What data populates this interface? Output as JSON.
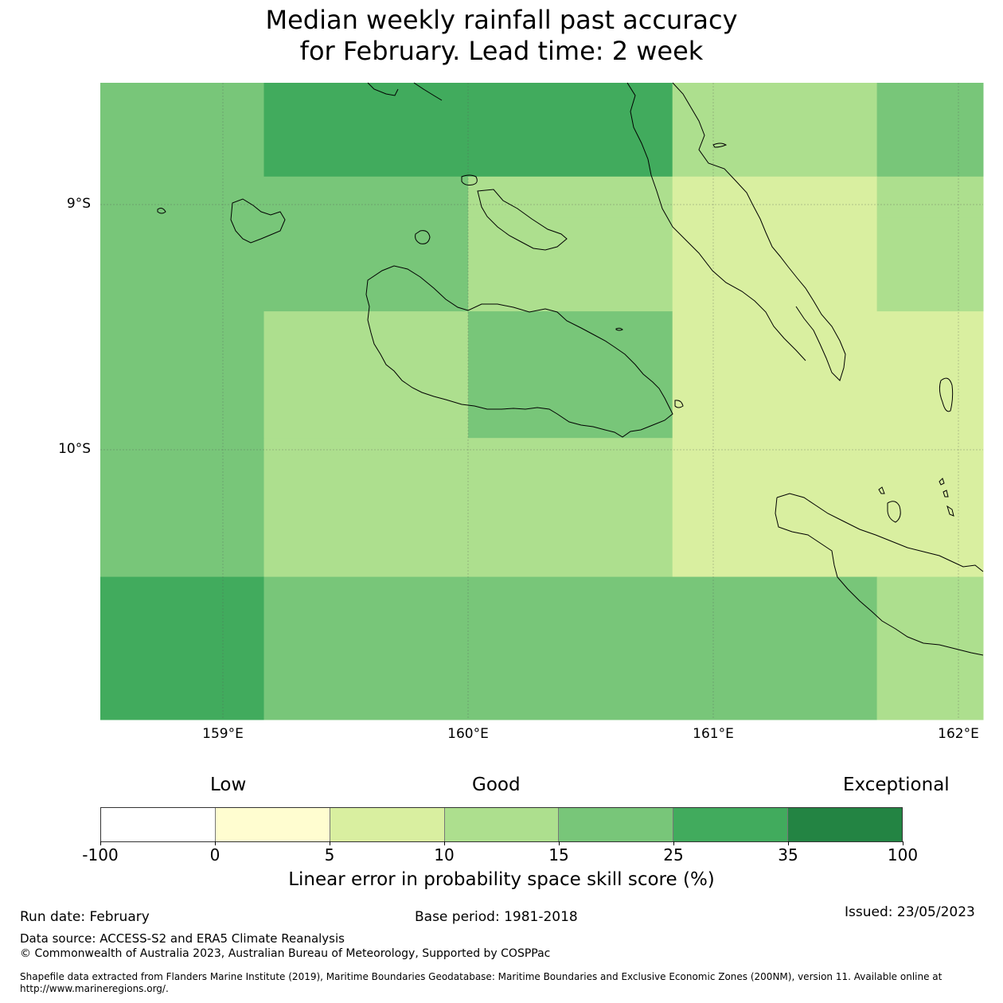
{
  "title": {
    "line1": "Median weekly rainfall past accuracy",
    "line2": "for February. Lead time: 2 week"
  },
  "map": {
    "lat_labels": [
      "9°S",
      "10°S"
    ],
    "lon_labels": [
      "159°E",
      "160°E",
      "161°E",
      "162°E"
    ],
    "lon_range": [
      158.5,
      162.1
    ],
    "lat_range": [
      -8.55,
      -11.15
    ],
    "cells": [
      {
        "lon": [
          158.5,
          159.167
        ],
        "lat": [
          -8.55,
          -8.933
        ],
        "category": 4
      },
      {
        "lon": [
          159.167,
          160.833
        ],
        "lat": [
          -8.55,
          -8.933
        ],
        "category": 5
      },
      {
        "lon": [
          160.833,
          161.667
        ],
        "lat": [
          -8.55,
          -8.933
        ],
        "category": 3
      },
      {
        "lon": [
          161.667,
          162.1
        ],
        "lat": [
          -8.55,
          -8.933
        ],
        "category": 4
      },
      {
        "lon": [
          158.5,
          160.0
        ],
        "lat": [
          -8.933,
          -9.1
        ],
        "category": 4
      },
      {
        "lon": [
          160.0,
          160.833
        ],
        "lat": [
          -8.933,
          -9.1
        ],
        "category": 3
      },
      {
        "lon": [
          160.833,
          161.667
        ],
        "lat": [
          -8.933,
          -9.1
        ],
        "category": 2
      },
      {
        "lon": [
          161.667,
          162.1
        ],
        "lat": [
          -8.933,
          -9.1
        ],
        "category": 3
      },
      {
        "lon": [
          158.5,
          160.0
        ],
        "lat": [
          -9.1,
          -9.483
        ],
        "category": 4
      },
      {
        "lon": [
          160.0,
          160.833
        ],
        "lat": [
          -9.1,
          -9.483
        ],
        "category": 3
      },
      {
        "lon": [
          160.833,
          161.667
        ],
        "lat": [
          -9.1,
          -9.483
        ],
        "category": 2
      },
      {
        "lon": [
          161.667,
          162.1
        ],
        "lat": [
          -9.1,
          -9.483
        ],
        "category": 3
      },
      {
        "lon": [
          158.5,
          159.167
        ],
        "lat": [
          -9.483,
          -10.0
        ],
        "category": 4
      },
      {
        "lon": [
          159.167,
          160.0
        ],
        "lat": [
          -9.483,
          -10.0
        ],
        "category": 3
      },
      {
        "lon": [
          160.0,
          160.833
        ],
        "lat": [
          -9.483,
          -10.0
        ],
        "category": 4
      },
      {
        "lon": [
          160.833,
          162.1
        ],
        "lat": [
          -9.483,
          -10.0
        ],
        "category": 2
      },
      {
        "lon": [
          158.5,
          159.167
        ],
        "lat": [
          -10.0,
          -10.567
        ],
        "category": 4
      },
      {
        "lon": [
          159.167,
          160.833
        ],
        "lat": [
          -10.0,
          -10.567
        ],
        "category": 3
      },
      {
        "lon": [
          160.833,
          162.1
        ],
        "lat": [
          -10.0,
          -10.567
        ],
        "category": 2
      },
      {
        "lon": [
          158.5,
          159.167
        ],
        "lat": [
          -10.567,
          -11.15
        ],
        "category": 5
      },
      {
        "lon": [
          159.167,
          161.667
        ],
        "lat": [
          -10.567,
          -11.15
        ],
        "category": 4
      },
      {
        "lon": [
          161.667,
          162.1
        ],
        "lat": [
          -10.567,
          -11.15
        ],
        "category": 3
      }
    ]
  },
  "colorbar": {
    "categories": [
      "Low",
      "Good",
      "Exceptional"
    ],
    "ticks": [
      "-100",
      "0",
      "5",
      "10",
      "15",
      "25",
      "35",
      "100"
    ],
    "colors": [
      "#ffffff",
      "#fffdd0",
      "#d9efa0",
      "#addf8e",
      "#78c679",
      "#41ab5d",
      "#238443"
    ],
    "label": "Linear error in probability space skill score (%)"
  },
  "footer": {
    "run_date": "Run date: February",
    "base_period": "Base period: 1981-2018",
    "issued": "Issued: 23/05/2023",
    "data_source": "Data source: ACCESS-S2 and ERA5 Climate Reanalysis",
    "copyright": "© Commonwealth of Australia 2023, Australian Bureau of Meteorology, Supported by COSPPac",
    "shapefile_line1": "Shapefile data extracted from Flanders Marine Institute (2019), Maritime Boundaries Geodatabase: Maritime Boundaries and Exclusive Economic Zones (200NM), version 11. Available online at",
    "shapefile_line2": "http://www.marineregions.org/."
  }
}
